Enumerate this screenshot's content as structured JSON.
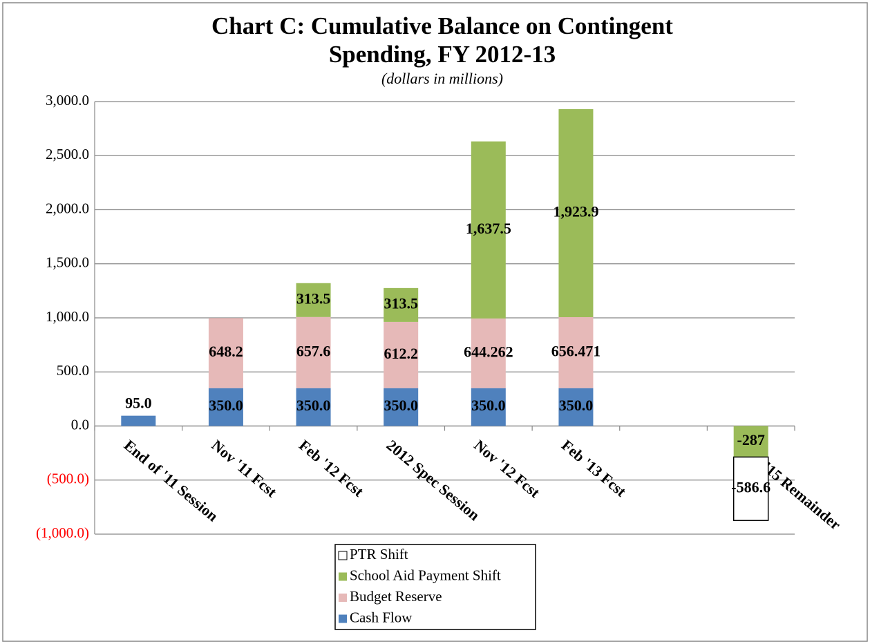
{
  "chart_data": {
    "type": "stacked_bar",
    "title": [
      "Chart C:  Cumulative Balance on Contingent",
      "Spending,  FY 2012-13"
    ],
    "subtitle": "(dollars in millions)",
    "categories": [
      "End of '11 Session",
      "Nov '11 Fcst",
      "Feb '12 Fcst",
      "2012 Spec Session",
      "Nov '12 Fcst",
      "Feb '13 Fcst",
      null,
      "FY 1415 Remainder"
    ],
    "series": [
      {
        "name": "Cash Flow",
        "color": "#4f81bd",
        "values": [
          95,
          350,
          350,
          350,
          350,
          350,
          null,
          null
        ],
        "value_labels": [
          "95.0",
          "350.0",
          "350.0",
          "350.0",
          "350.0",
          "350.0",
          null,
          null
        ]
      },
      {
        "name": "Budget Reserve",
        "color": "#e6b9b8",
        "values": [
          null,
          648.2,
          657.6,
          612.2,
          644.262,
          656.471,
          null,
          null
        ],
        "value_labels": [
          null,
          "648.2",
          "657.6",
          "612.2",
          "644.262",
          "656.471",
          null,
          null
        ]
      },
      {
        "name": "School Aid Payment Shift",
        "color": "#9bbb59",
        "values": [
          null,
          null,
          313.5,
          313.5,
          1637.5,
          1923.9,
          null,
          -287
        ],
        "value_labels": [
          null,
          null,
          "313.5",
          "313.5",
          "1,637.5",
          "1,923.9",
          null,
          "-287"
        ]
      },
      {
        "name": "PTR Shift",
        "color": "#ffffff",
        "values": [
          null,
          null,
          null,
          null,
          null,
          null,
          null,
          -586.6
        ],
        "value_labels": [
          null,
          null,
          null,
          null,
          null,
          null,
          null,
          "-586.6"
        ]
      }
    ],
    "ylim": [
      -1000,
      3000
    ],
    "yticks": [
      {
        "value": -1000,
        "label": "(1,000.0)"
      },
      {
        "value": -500,
        "label": "(500.0)"
      },
      {
        "value": 0,
        "label": "0.0"
      },
      {
        "value": 500,
        "label": "500.0"
      },
      {
        "value": 1000,
        "label": "1,000.0"
      },
      {
        "value": 1500,
        "label": "1,500.0"
      },
      {
        "value": 2000,
        "label": "2,000.0"
      },
      {
        "value": 2500,
        "label": "2,500.0"
      },
      {
        "value": 3000,
        "label": "3,000.0"
      }
    ],
    "negative_tick_color": "#ff0000",
    "grid": true,
    "legend": "bottom"
  }
}
